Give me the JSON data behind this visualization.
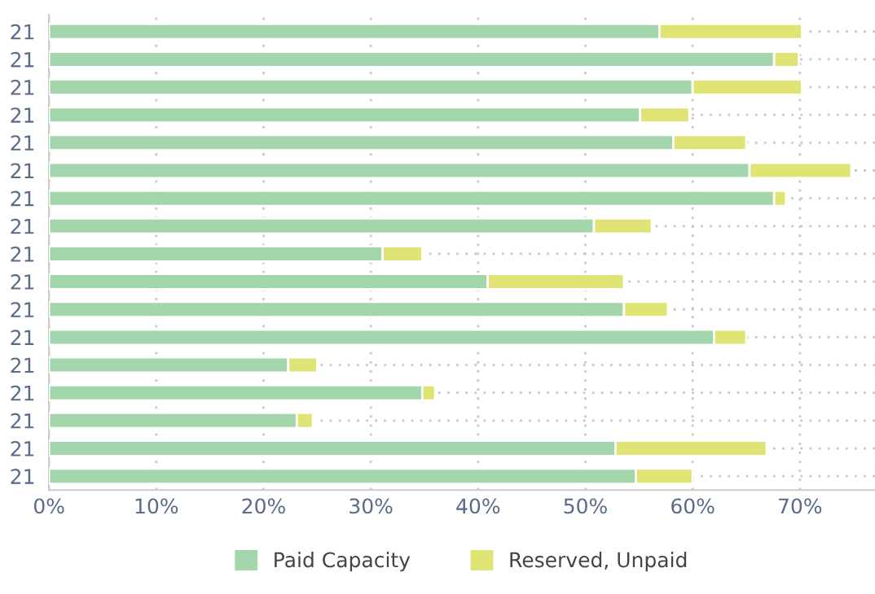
{
  "chart_data": {
    "type": "bar",
    "orientation": "horizontal",
    "stacked": true,
    "categories": [
      "21",
      "21",
      "21",
      "21",
      "21",
      "21",
      "21",
      "21",
      "21",
      "21",
      "21",
      "21",
      "21",
      "21",
      "21",
      "21",
      "21"
    ],
    "series": [
      {
        "name": "Paid Capacity",
        "color": "#a3d7ab",
        "values": [
          56.9,
          67.6,
          60.0,
          55.1,
          58.2,
          65.3,
          67.6,
          50.8,
          31.1,
          40.9,
          53.6,
          62.0,
          22.3,
          34.8,
          23.1,
          52.8,
          54.7
        ]
      },
      {
        "name": "Reserved, Unpaid",
        "color": "#e0e474",
        "values": [
          13.3,
          2.3,
          10.2,
          4.6,
          6.8,
          9.5,
          1.1,
          5.4,
          3.7,
          12.7,
          4.1,
          3.0,
          2.7,
          1.2,
          1.5,
          14.1,
          5.3
        ]
      }
    ],
    "xlim": [
      0,
      77
    ],
    "xticks": [
      {
        "value": 0,
        "label": "0%"
      },
      {
        "value": 10,
        "label": "10%"
      },
      {
        "value": 20,
        "label": "20%"
      },
      {
        "value": 30,
        "label": "30%"
      },
      {
        "value": 40,
        "label": "40%"
      },
      {
        "value": 50,
        "label": "50%"
      },
      {
        "value": 60,
        "label": "60%"
      },
      {
        "value": 70,
        "label": "70%"
      }
    ],
    "grid": true,
    "legend": "bottom"
  }
}
